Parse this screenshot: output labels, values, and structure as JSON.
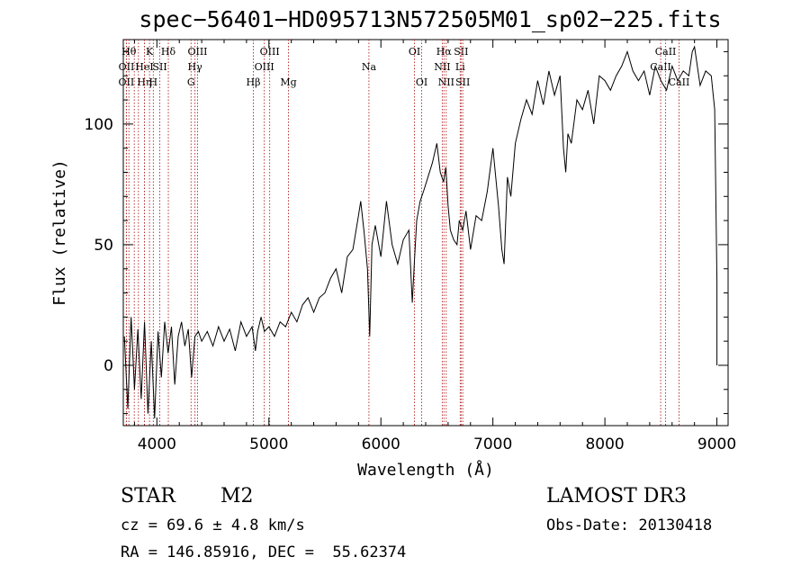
{
  "chart_data": {
    "type": "line",
    "title": "spec−56401−HD095713N572505M01_sp02−225.fits",
    "xlabel": "Wavelength (Å)",
    "ylabel": "Flux (relative)",
    "xlim": [
      3700,
      9100
    ],
    "ylim": [
      -25,
      135
    ],
    "xticks": [
      4000,
      5000,
      6000,
      7000,
      8000,
      9000
    ],
    "yticks": [
      0,
      50,
      100
    ],
    "grid": false,
    "series": [
      {
        "name": "spectrum",
        "x": [
          3710,
          3740,
          3770,
          3800,
          3830,
          3860,
          3890,
          3920,
          3950,
          3980,
          4010,
          4040,
          4070,
          4100,
          4130,
          4160,
          4190,
          4220,
          4250,
          4280,
          4310,
          4340,
          4370,
          4400,
          4450,
          4500,
          4550,
          4600,
          4650,
          4700,
          4750,
          4800,
          4850,
          4880,
          4900,
          4930,
          4960,
          5000,
          5050,
          5100,
          5150,
          5200,
          5250,
          5300,
          5350,
          5400,
          5450,
          5500,
          5550,
          5600,
          5650,
          5700,
          5750,
          5800,
          5820,
          5850,
          5880,
          5900,
          5920,
          5950,
          6000,
          6050,
          6100,
          6150,
          6200,
          6250,
          6280,
          6300,
          6320,
          6350,
          6380,
          6420,
          6460,
          6500,
          6530,
          6560,
          6580,
          6600,
          6620,
          6650,
          6680,
          6700,
          6730,
          6760,
          6800,
          6850,
          6900,
          6950,
          7000,
          7050,
          7080,
          7100,
          7130,
          7160,
          7200,
          7250,
          7300,
          7350,
          7400,
          7450,
          7500,
          7550,
          7600,
          7630,
          7650,
          7670,
          7700,
          7750,
          7800,
          7850,
          7900,
          7950,
          8000,
          8050,
          8100,
          8150,
          8200,
          8250,
          8300,
          8350,
          8400,
          8450,
          8500,
          8550,
          8600,
          8650,
          8700,
          8750,
          8780,
          8800,
          8850,
          8900,
          8950,
          8980,
          9000,
          9000
        ],
        "y": [
          12,
          -18,
          20,
          -10,
          15,
          -14,
          18,
          -20,
          10,
          -22,
          14,
          -5,
          18,
          5,
          16,
          -8,
          12,
          18,
          8,
          15,
          -5,
          12,
          14,
          10,
          14,
          8,
          16,
          10,
          15,
          6,
          18,
          12,
          16,
          6,
          14,
          20,
          14,
          16,
          12,
          18,
          16,
          22,
          18,
          25,
          28,
          22,
          28,
          30,
          36,
          40,
          30,
          45,
          48,
          62,
          68,
          55,
          40,
          12,
          50,
          58,
          45,
          68,
          50,
          42,
          52,
          56,
          26,
          44,
          60,
          68,
          72,
          78,
          84,
          92,
          80,
          76,
          82,
          66,
          56,
          52,
          50,
          60,
          56,
          64,
          48,
          62,
          60,
          72,
          90,
          66,
          48,
          42,
          78,
          70,
          92,
          102,
          110,
          104,
          118,
          108,
          122,
          112,
          120,
          90,
          80,
          96,
          92,
          110,
          106,
          114,
          100,
          120,
          118,
          114,
          120,
          124,
          130,
          122,
          118,
          122,
          112,
          124,
          118,
          114,
          124,
          118,
          122,
          120,
          130,
          132,
          116,
          122,
          120,
          106,
          35,
          0
        ],
        "color": "#000000"
      }
    ],
    "lines": [
      {
        "x": 3750,
        "label": "Hθ",
        "row": 0
      },
      {
        "x": 3728,
        "label": "OII",
        "row": 1
      },
      {
        "x": 3727,
        "label": "OII",
        "row": 2
      },
      {
        "x": 3798,
        "label": "",
        "row": -1
      },
      {
        "x": 3835,
        "label": "",
        "row": -1
      },
      {
        "x": 3889,
        "label": "Hη",
        "row": 2
      },
      {
        "x": 3934,
        "label": "K",
        "row": 0
      },
      {
        "x": 3968,
        "label": "H",
        "row": 2
      },
      {
        "x": 3889,
        "label": "HeI",
        "row": 1
      },
      {
        "x": 4026,
        "label": "SII",
        "row": 1
      },
      {
        "x": 4102,
        "label": "Hδ",
        "row": 0
      },
      {
        "x": 4340,
        "label": "Hγ",
        "row": 1
      },
      {
        "x": 4305,
        "label": "G",
        "row": 2
      },
      {
        "x": 4363,
        "label": "OIII",
        "row": 0
      },
      {
        "x": 4861,
        "label": "Hβ",
        "row": 2
      },
      {
        "x": 4959,
        "label": "OIII",
        "row": 1
      },
      {
        "x": 5007,
        "label": "OIII",
        "row": 0
      },
      {
        "x": 5175,
        "label": "Mg",
        "row": 2
      },
      {
        "x": 5893,
        "label": "Na",
        "row": 1
      },
      {
        "x": 6300,
        "label": "OI",
        "row": 0
      },
      {
        "x": 6364,
        "label": "OI",
        "row": 2
      },
      {
        "x": 6548,
        "label": "NII",
        "row": 1
      },
      {
        "x": 6563,
        "label": "Hα",
        "row": 0
      },
      {
        "x": 6583,
        "label": "NII",
        "row": 2
      },
      {
        "x": 6708,
        "label": "Li",
        "row": 1
      },
      {
        "x": 6716,
        "label": "SII",
        "row": 0
      },
      {
        "x": 6731,
        "label": "SII",
        "row": 2
      },
      {
        "x": 8498,
        "label": "CaII",
        "row": 1
      },
      {
        "x": 8542,
        "label": "CaII",
        "row": 0
      },
      {
        "x": 8662,
        "label": "CaII",
        "row": 2
      }
    ]
  },
  "footer": {
    "object_class": "STAR",
    "subclass": "M2",
    "survey": "LAMOST DR3",
    "velocity": "cz = 69.6 ± 4.8 km/s",
    "obs_date": "Obs-Date: 20130418",
    "coords": "RA = 146.85916, DEC =  55.62374"
  },
  "colors": {
    "line_markers": "#b22222",
    "spectrum": "#000000"
  }
}
